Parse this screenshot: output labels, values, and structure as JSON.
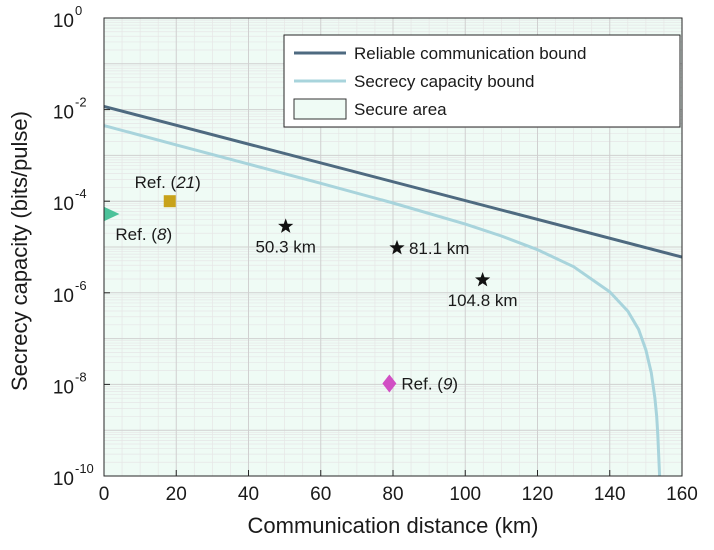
{
  "chart_data": {
    "type": "line",
    "title": "",
    "xlabel": "Communication distance (km)",
    "ylabel": "Secrecy capacity (bits/pulse)",
    "xlim": [
      0,
      160
    ],
    "ylim_log10": [
      -10,
      0
    ],
    "yscale": "log",
    "grid": true,
    "legend_position": "top-right",
    "x_ticks": [
      0,
      20,
      40,
      60,
      80,
      100,
      120,
      140,
      160
    ],
    "x_tick_labels": [
      "0",
      "20",
      "40",
      "60",
      "80",
      "100",
      "120",
      "140",
      "160"
    ],
    "y_ticks": [
      {
        "base": "10",
        "exp": "0"
      },
      {
        "base": "10",
        "exp": "-2"
      },
      {
        "base": "10",
        "exp": "-4"
      },
      {
        "base": "10",
        "exp": "-6"
      },
      {
        "base": "10",
        "exp": "-8"
      },
      {
        "base": "10",
        "exp": "-10"
      }
    ],
    "series": [
      {
        "name": "Reliable communication bound",
        "color": "#4e6a80",
        "x": [
          0,
          160
        ],
        "y_log10": [
          -1.93,
          -5.22
        ]
      },
      {
        "name": "Secrecy capacity bound",
        "color": "#a8d4dc",
        "x": [
          0,
          20,
          40,
          60,
          80,
          100,
          110,
          120,
          130,
          140,
          145,
          148,
          150,
          151.5,
          152.5,
          153,
          153.3,
          153.5,
          153.7,
          153.8
        ],
        "y_log10": [
          -2.35,
          -2.77,
          -3.19,
          -3.61,
          -4.04,
          -4.5,
          -4.76,
          -5.06,
          -5.43,
          -5.98,
          -6.4,
          -6.8,
          -7.25,
          -7.75,
          -8.3,
          -8.7,
          -9.1,
          -9.45,
          -9.8,
          -10
        ]
      }
    ],
    "secure_area": {
      "name": "Secure area",
      "color": "#effbf5",
      "edge_color": "#333333"
    },
    "points": [
      {
        "label": "50.3 km",
        "x": 50.3,
        "y_log10": -4.55,
        "marker": "star",
        "color": "#111111",
        "label_side": "bottom"
      },
      {
        "label": "81.1 km",
        "x": 81.1,
        "y_log10": -5.02,
        "marker": "star",
        "color": "#111111",
        "label_side": "right"
      },
      {
        "label": "104.8 km",
        "x": 104.8,
        "y_log10": -5.72,
        "marker": "star",
        "color": "#111111",
        "label_side": "bottom"
      },
      {
        "label_prefix": "Ref. (",
        "label_ref": "21",
        "label_suffix": ")",
        "x": 18.2,
        "y_log10": -4.0,
        "marker": "square",
        "color": "#c8a21a",
        "label_side": "top"
      },
      {
        "label_prefix": "Ref. (",
        "label_ref": "8",
        "label_suffix": ")",
        "x": 1.5,
        "y_log10": -4.28,
        "marker": "triangle-right",
        "color": "#4cc29a",
        "label_side": "bottom-right"
      },
      {
        "label_prefix": "Ref. (",
        "label_ref": "9",
        "label_suffix": ")",
        "x": 79.0,
        "y_log10": -7.98,
        "marker": "diamond",
        "color": "#d14fc4",
        "label_side": "right"
      }
    ]
  }
}
